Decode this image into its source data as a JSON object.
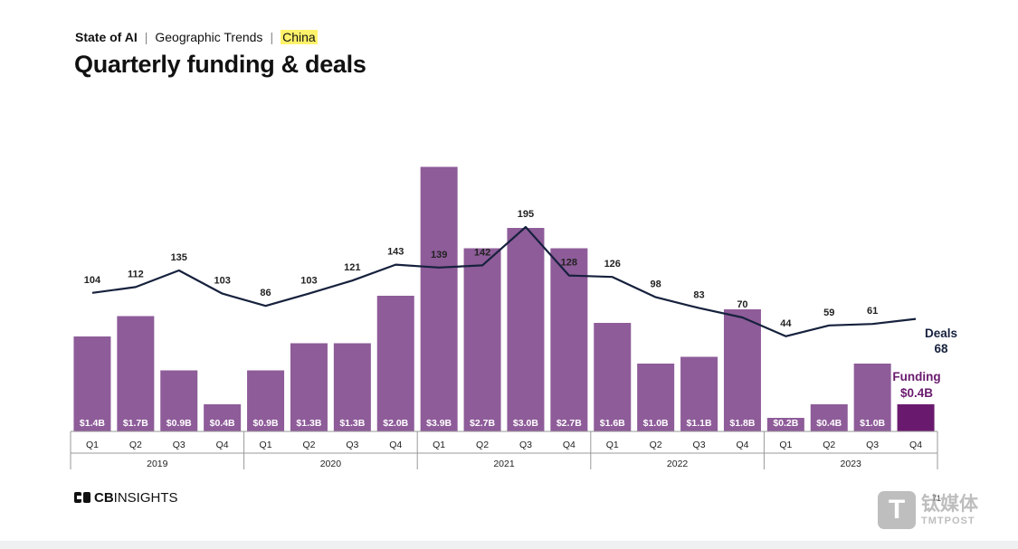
{
  "breadcrumb": {
    "section": "State of AI",
    "topic": "Geographic Trends",
    "region": "China",
    "separator": "|"
  },
  "page_title": "Quarterly funding & deals",
  "colors": {
    "bar": "#8e5c99",
    "bar_highlight": "#6a1a6e",
    "line": "#16213d",
    "axis": "#999999",
    "highlight_label": "#6a1a6e"
  },
  "chart_data": {
    "type": "bar",
    "title": "",
    "quarters": [
      "Q1",
      "Q2",
      "Q3",
      "Q4",
      "Q1",
      "Q2",
      "Q3",
      "Q4",
      "Q1",
      "Q2",
      "Q3",
      "Q4",
      "Q1",
      "Q2",
      "Q3",
      "Q4",
      "Q1",
      "Q2",
      "Q3",
      "Q4"
    ],
    "years": [
      "2019",
      "2020",
      "2021",
      "2022",
      "2023"
    ],
    "series": [
      {
        "name": "Funding",
        "unit": "$B",
        "values": [
          1.4,
          1.7,
          0.9,
          0.4,
          0.9,
          1.3,
          1.3,
          2.0,
          3.9,
          2.7,
          3.0,
          2.7,
          1.6,
          1.0,
          1.1,
          1.8,
          0.2,
          0.4,
          1.0,
          0.4
        ],
        "labels": [
          "$1.4B",
          "$1.7B",
          "$0.9B",
          "$0.4B",
          "$0.9B",
          "$1.3B",
          "$1.3B",
          "$2.0B",
          "$3.9B",
          "$2.7B",
          "$3.0B",
          "$2.7B",
          "$1.6B",
          "$1.0B",
          "$1.1B",
          "$1.8B",
          "$0.2B",
          "$0.4B",
          "$1.0B",
          ""
        ]
      },
      {
        "name": "Deals",
        "values": [
          104,
          112,
          135,
          103,
          86,
          103,
          121,
          143,
          139,
          142,
          195,
          128,
          126,
          98,
          83,
          70,
          44,
          59,
          61,
          68
        ],
        "labels": [
          "104",
          "112",
          "135",
          "103",
          "86",
          "103",
          "121",
          "143",
          "139",
          "142",
          "195",
          "128",
          "126",
          "98",
          "83",
          "70",
          "44",
          "59",
          "61",
          ""
        ]
      }
    ],
    "callouts": {
      "deals": {
        "name": "Deals",
        "value": "68"
      },
      "funding": {
        "name": "Funding",
        "value": "$0.4B"
      }
    },
    "legend": "none"
  },
  "footer": {
    "logo_text_bold": "CB",
    "logo_text": "INSIGHTS",
    "page_number": "71"
  },
  "watermark": {
    "glyph": "T",
    "cn": "钛媒体",
    "en": "TMTPOST"
  }
}
